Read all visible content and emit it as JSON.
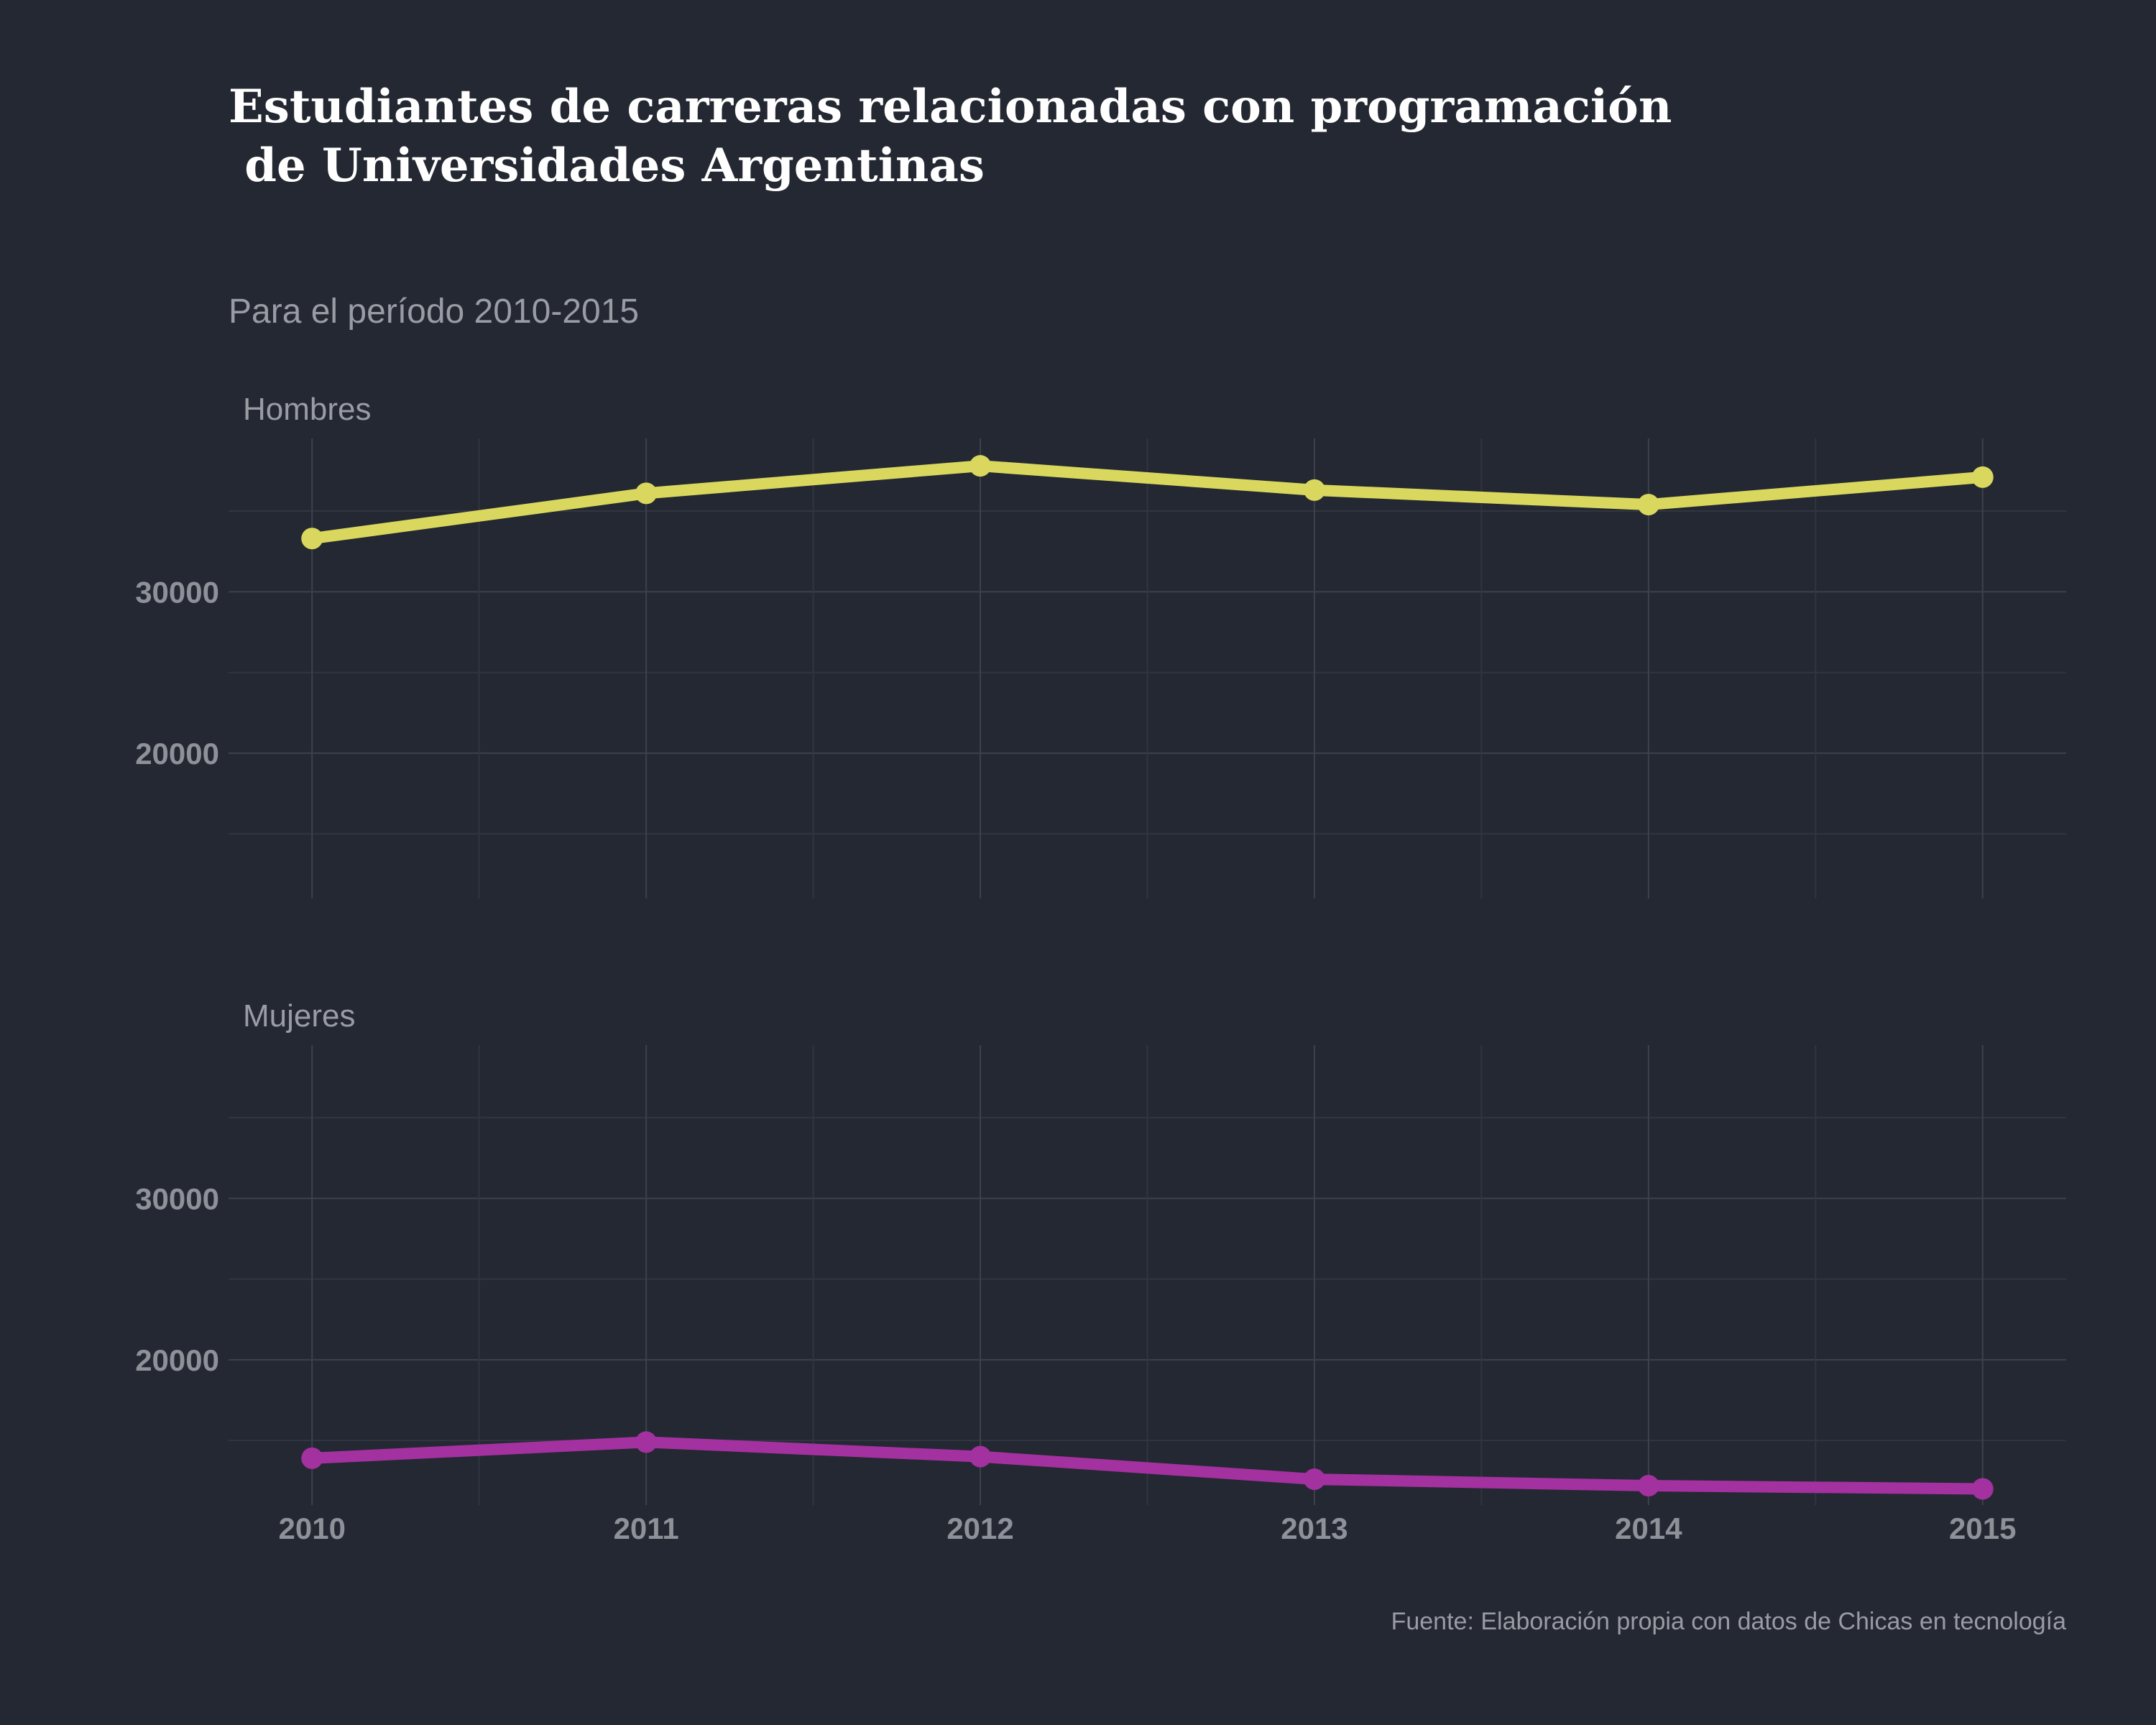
{
  "chart_data": {
    "type": "line",
    "title_lines": [
      "Estudiantes de carreras relacionadas con programación",
      " de Universidades Argentinas"
    ],
    "subtitle": "Para el período 2010-2015",
    "caption": "Fuente: Elaboración propia con datos de Chicas en tecnología",
    "x": [
      2010,
      2011,
      2012,
      2013,
      2014,
      2015
    ],
    "xlim": [
      2009.75,
      2015.25
    ],
    "ylim": [
      11000,
      39500
    ],
    "y_ticks": [
      20000,
      30000
    ],
    "y_tick_labels": [
      "20000",
      "30000"
    ],
    "x_tick_labels": [
      "2010",
      "2011",
      "2012",
      "2013",
      "2014",
      "2015"
    ],
    "grid": true,
    "legend": "none",
    "panels": [
      {
        "name": "Hombres",
        "color": "#d9d75e",
        "values": [
          33300,
          36100,
          37800,
          36300,
          35400,
          37100
        ]
      },
      {
        "name": "Mujeres",
        "color": "#a3319f",
        "values": [
          13900,
          14900,
          14000,
          12600,
          12200,
          12000
        ]
      }
    ]
  }
}
